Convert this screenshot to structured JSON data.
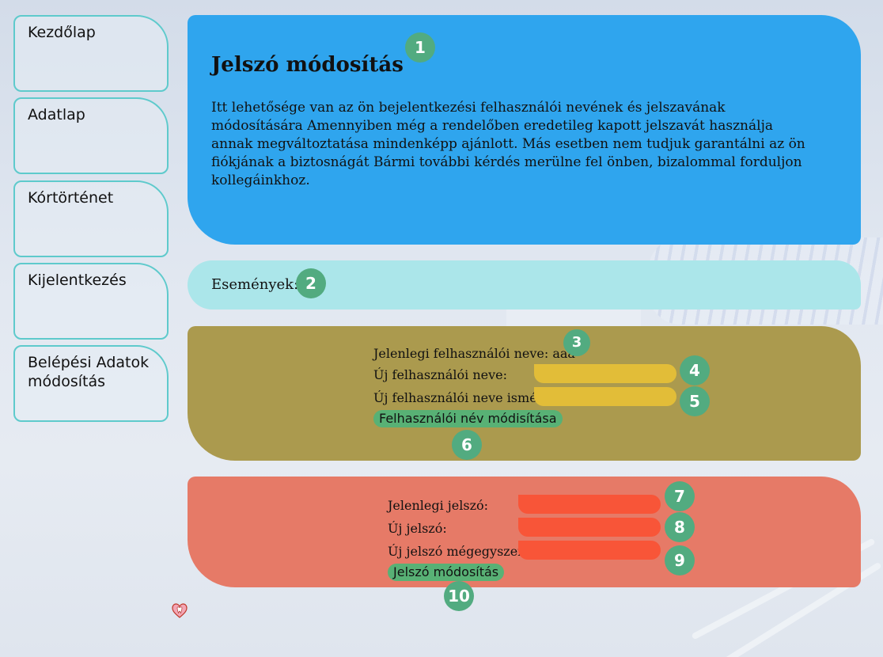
{
  "sidebar": {
    "items": [
      {
        "label": "Kezdőlap"
      },
      {
        "label": "Adatlap"
      },
      {
        "label": "Kórtörténet"
      },
      {
        "label": "Kijelentkezés"
      },
      {
        "label": "Belépési Adatok módosítás"
      }
    ]
  },
  "info": {
    "title": "Jelszó módosítás",
    "text": "Itt lehetősége van az ön bejelentkezési felhasználói nevének és jelszavának módosítására Amennyiben még a rendelőben eredetileg kapott jelszavát használja annak megváltoztatása mindenképp ajánlott. Más esetben nem tudjuk garantálni az ön fiókjának a biztosnágát Bármi további kérdés merülne fel önben, bizalommal forduljon kollegáinkhoz."
  },
  "events": {
    "label": "Események:"
  },
  "username_form": {
    "current_label": "Jelenlegi felhasználói neve: aaa",
    "new_label": "Új felhasználói neve:",
    "new_value": "",
    "repeat_label": "Új felhasználói neve ismét:",
    "repeat_value": "",
    "submit_label": "Felhasználói név módisítása"
  },
  "password_form": {
    "current_label": "Jelenlegi jelszó:",
    "current_value": "",
    "new_label": "Új jelszó:",
    "new_value": "",
    "repeat_label": "Új jelszó mégegyszer:",
    "repeat_value": "",
    "submit_label": "Jelszó módosítás"
  },
  "markers": [
    "1",
    "2",
    "3",
    "4",
    "5",
    "6",
    "7",
    "8",
    "9",
    "10"
  ],
  "colors": {
    "info_panel": "#2fa5ee",
    "events_panel": "#abe6ea",
    "username_panel": "#ab9a4e",
    "password_panel": "#e67a67",
    "username_input": "#e2bd38",
    "password_input": "#f85538",
    "button": "#58b175",
    "marker": "#52ab80",
    "nav_border": "#5ecacc"
  },
  "icons": {
    "footer": "tooth-heart-icon"
  }
}
